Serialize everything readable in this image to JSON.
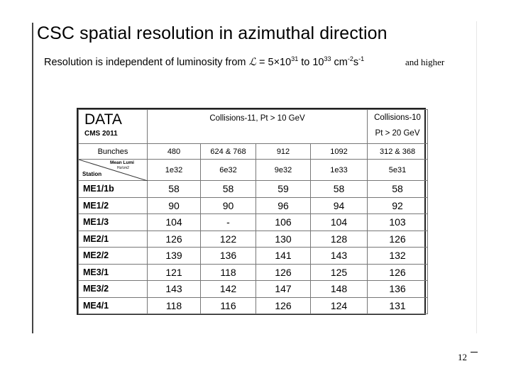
{
  "slide": {
    "title": "CSC spatial resolution in azimuthal direction",
    "subtitle_prefix": "Resolution is independent of luminosity from ",
    "lumi_symbol": "ℒ",
    "subtitle_eq": " = 5×10",
    "exp1": "31",
    "subtitle_to": " to 10",
    "exp2": "33",
    "subtitle_units": " cm",
    "exp3": "-2",
    "units_s": "s",
    "exp4": "-1",
    "and_higher": "and higher",
    "page_number": "12"
  },
  "table": {
    "data_label": "DATA",
    "cms_label": "CMS 2011",
    "collisions11_label": "Collisions-11,  Pt > 10 GeV",
    "collisions10_line1": "Collisions-10",
    "collisions10_line2": "Pt > 20 GeV",
    "bunches_label": "Bunches",
    "bunches": [
      "480",
      "624 & 768",
      "912",
      "1092",
      "312  & 368"
    ],
    "mean_lumi_label": "Mean Lumi",
    "mean_lumi_unit": "Hz/cm2",
    "station_label": "Station",
    "mean_lumi": [
      "1e32",
      "6e32",
      "9e32",
      "1e33",
      "5e31"
    ],
    "rows": [
      {
        "station": "ME1/1b",
        "values": [
          "58",
          "58",
          "59",
          "58",
          "58"
        ]
      },
      {
        "station": "ME1/2",
        "values": [
          "90",
          "90",
          "96",
          "94",
          "92"
        ]
      },
      {
        "station": "ME1/3",
        "values": [
          "104",
          "-",
          "106",
          "104",
          "103"
        ]
      },
      {
        "station": "ME2/1",
        "values": [
          "126",
          "122",
          "130",
          "128",
          "126"
        ]
      },
      {
        "station": "ME2/2",
        "values": [
          "139",
          "136",
          "141",
          "143",
          "132"
        ]
      },
      {
        "station": "ME3/1",
        "values": [
          "121",
          "118",
          "126",
          "125",
          "126"
        ]
      },
      {
        "station": "ME3/2",
        "values": [
          "143",
          "142",
          "147",
          "148",
          "136"
        ]
      },
      {
        "station": "ME4/1",
        "values": [
          "118",
          "116",
          "126",
          "124",
          "131"
        ]
      }
    ]
  }
}
